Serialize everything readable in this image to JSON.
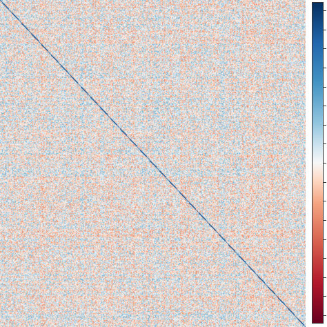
{
  "chart_data": {
    "type": "heatmap",
    "title": "",
    "xlabel": "",
    "ylabel": "",
    "description_values": {
      "diagonal_value": 1.0,
      "off_diagonal_range": [
        -0.3,
        0.3
      ]
    },
    "color_scale": {
      "name": "RdBu",
      "min_color": "#67001f",
      "mid_color": "#f7f7f7",
      "max_color": "#053061",
      "vmin": -1.0,
      "vmax": 1.0
    },
    "colorbar_tick_count": 17,
    "grid": false
  }
}
